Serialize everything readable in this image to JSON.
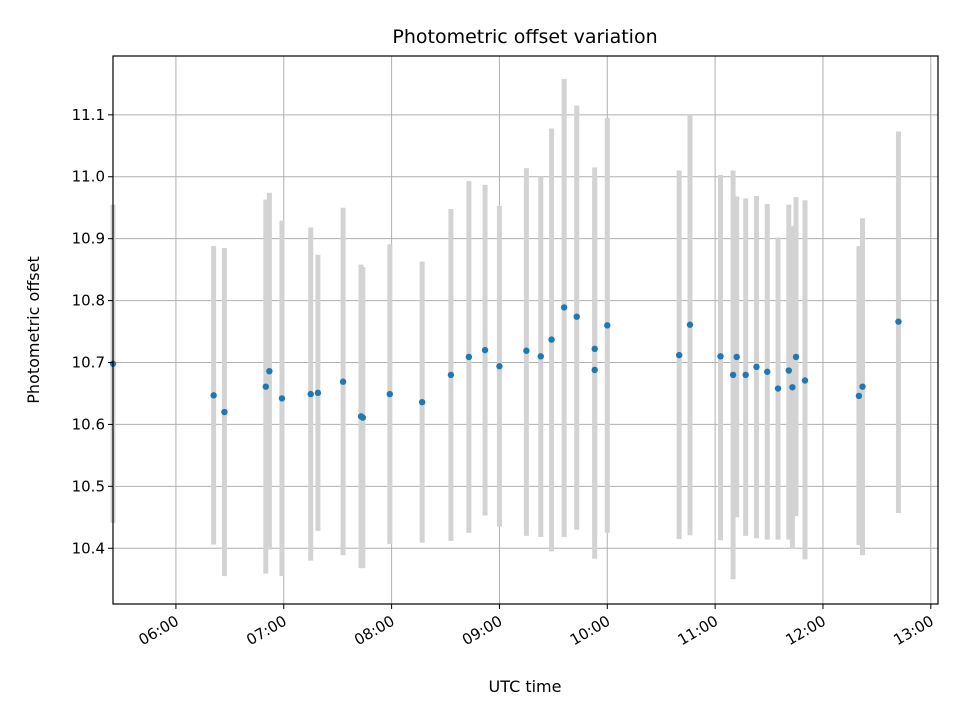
{
  "chart_data": {
    "type": "scatter",
    "title": "Photometric offset variation",
    "xlabel": "UTC time",
    "ylabel": "Photometric offset",
    "x_ticks": [
      "06:00",
      "07:00",
      "08:00",
      "09:00",
      "10:00",
      "11:00",
      "12:00",
      "13:00"
    ],
    "y_ticks": [
      "10.4",
      "10.5",
      "10.6",
      "10.7",
      "10.8",
      "10.9",
      "11.0",
      "11.1"
    ],
    "xlim": [
      "05:25",
      "13:04"
    ],
    "ylim": [
      10.31,
      11.195
    ],
    "grid": true,
    "errorbar_color": "#d3d3d3",
    "point_color": "#1f77b4",
    "points": [
      {
        "t": "05:25",
        "y": 10.698,
        "lo": 10.441,
        "hi": 10.955
      },
      {
        "t": "06:21",
        "y": 10.647,
        "lo": 10.406,
        "hi": 10.888
      },
      {
        "t": "06:27",
        "y": 10.62,
        "lo": 10.355,
        "hi": 10.885
      },
      {
        "t": "06:50",
        "y": 10.661,
        "lo": 10.359,
        "hi": 10.963
      },
      {
        "t": "06:52",
        "y": 10.686,
        "lo": 10.398,
        "hi": 10.974
      },
      {
        "t": "06:59",
        "y": 10.642,
        "lo": 10.355,
        "hi": 10.929
      },
      {
        "t": "07:15",
        "y": 10.649,
        "lo": 10.38,
        "hi": 10.918
      },
      {
        "t": "07:19",
        "y": 10.651,
        "lo": 10.428,
        "hi": 10.874
      },
      {
        "t": "07:33",
        "y": 10.669,
        "lo": 10.389,
        "hi": 10.95
      },
      {
        "t": "07:43",
        "y": 10.613,
        "lo": 10.368,
        "hi": 10.858
      },
      {
        "t": "07:44",
        "y": 10.611,
        "lo": 10.368,
        "hi": 10.854
      },
      {
        "t": "07:59",
        "y": 10.649,
        "lo": 10.407,
        "hi": 10.891
      },
      {
        "t": "08:17",
        "y": 10.636,
        "lo": 10.409,
        "hi": 10.863
      },
      {
        "t": "08:33",
        "y": 10.68,
        "lo": 10.412,
        "hi": 10.948
      },
      {
        "t": "08:43",
        "y": 10.709,
        "lo": 10.425,
        "hi": 10.993
      },
      {
        "t": "08:52",
        "y": 10.72,
        "lo": 10.453,
        "hi": 10.987
      },
      {
        "t": "09:00",
        "y": 10.694,
        "lo": 10.435,
        "hi": 10.953
      },
      {
        "t": "09:15",
        "y": 10.719,
        "lo": 10.42,
        "hi": 11.014
      },
      {
        "t": "09:23",
        "y": 10.71,
        "lo": 10.418,
        "hi": 11.0
      },
      {
        "t": "09:29",
        "y": 10.737,
        "lo": 10.395,
        "hi": 11.078
      },
      {
        "t": "09:36",
        "y": 10.789,
        "lo": 10.418,
        "hi": 11.158
      },
      {
        "t": "09:43",
        "y": 10.774,
        "lo": 10.43,
        "hi": 11.115
      },
      {
        "t": "09:53",
        "y": 10.688,
        "lo": 10.383,
        "hi": 11.015
      },
      {
        "t": "09:53",
        "y": 10.722,
        "lo": 10.418,
        "hi": 10.993
      },
      {
        "t": "10:00",
        "y": 10.76,
        "lo": 10.425,
        "hi": 11.095
      },
      {
        "t": "10:40",
        "y": 10.712,
        "lo": 10.415,
        "hi": 11.01
      },
      {
        "t": "10:46",
        "y": 10.761,
        "lo": 10.421,
        "hi": 11.1
      },
      {
        "t": "11:03",
        "y": 10.71,
        "lo": 10.413,
        "hi": 11.003
      },
      {
        "t": "11:10",
        "y": 10.68,
        "lo": 10.35,
        "hi": 11.01
      },
      {
        "t": "11:12",
        "y": 10.709,
        "lo": 10.45,
        "hi": 10.968
      },
      {
        "t": "11:17",
        "y": 10.68,
        "lo": 10.42,
        "hi": 10.965
      },
      {
        "t": "11:23",
        "y": 10.693,
        "lo": 10.416,
        "hi": 10.969
      },
      {
        "t": "11:29",
        "y": 10.685,
        "lo": 10.414,
        "hi": 10.956
      },
      {
        "t": "11:35",
        "y": 10.658,
        "lo": 10.414,
        "hi": 10.902
      },
      {
        "t": "11:41",
        "y": 10.687,
        "lo": 10.414,
        "hi": 10.955
      },
      {
        "t": "11:43",
        "y": 10.66,
        "lo": 10.399,
        "hi": 10.92
      },
      {
        "t": "11:45",
        "y": 10.709,
        "lo": 10.452,
        "hi": 10.967
      },
      {
        "t": "11:50",
        "y": 10.671,
        "lo": 10.382,
        "hi": 10.962
      },
      {
        "t": "12:20",
        "y": 10.646,
        "lo": 10.405,
        "hi": 10.888
      },
      {
        "t": "12:22",
        "y": 10.661,
        "lo": 10.389,
        "hi": 10.933
      },
      {
        "t": "12:42",
        "y": 10.766,
        "lo": 10.457,
        "hi": 11.073
      }
    ]
  }
}
